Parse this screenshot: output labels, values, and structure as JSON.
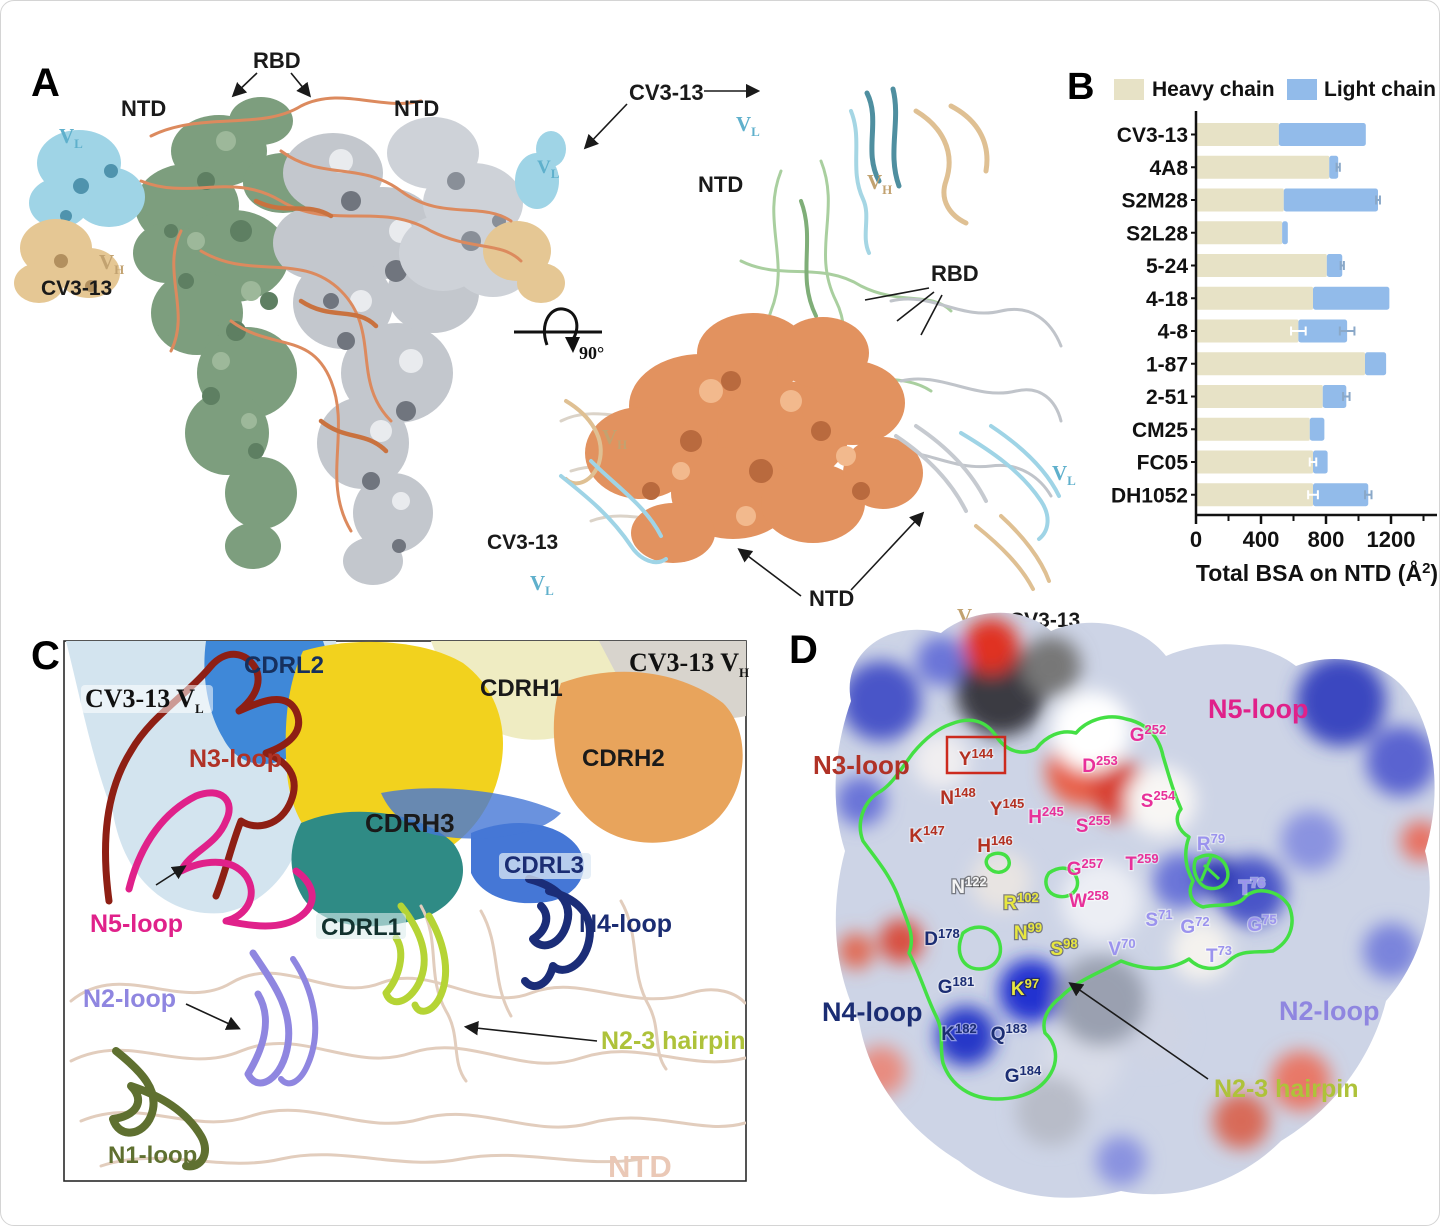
{
  "colors": {
    "heavy_chain": "#e7e2c6",
    "light_chain": "#92bbea",
    "light_err": "#8aa8c8",
    "heavy_err": "#ffffff",
    "n1_loop": "#5f7030",
    "n2_loop": "#8f86e0",
    "n3_loop": "#b03226",
    "n4_loop": "#1b2d73",
    "n5_loop": "#e0218a",
    "n23_hairpin": "#aec23a",
    "vl_cyan": "#5fb0cc",
    "vh_tan": "#c2a270",
    "ntd_pink": "#eac8b6",
    "epitope_outline": "#44e044",
    "box_red": "#cc2a1e",
    "residue_n3": "#b43121",
    "residue_n5": "#e8309a",
    "residue_n2": "#9b93ee",
    "residue_n4": "#1b2d73",
    "residue_yellow": "#e8e73f",
    "residue_white": "#f5f5f5"
  },
  "panel_a": {
    "label": "A",
    "rbd": "RBD",
    "ntd": "NTD",
    "cv3_13": "CV3-13",
    "v": "V",
    "sub_l": "L",
    "sub_h": "H",
    "rotation_angle": "90°"
  },
  "panel_b": {
    "label": "B",
    "legend_heavy": "Heavy chain",
    "legend_light": "Light chain"
  },
  "chart_data": {
    "type": "bar",
    "orientation": "horizontal",
    "stacked": true,
    "title": "",
    "xlabel": "Total BSA on NTD (Å²)",
    "ylabel": "",
    "xlim": [
      0,
      1400
    ],
    "xticks": [
      0,
      400,
      800,
      1200
    ],
    "xticks_minor": [
      200,
      600,
      1000,
      1400
    ],
    "grid": false,
    "legend_position": "top",
    "categories": [
      "CV3-13",
      "4A8",
      "S2M28",
      "S2L28",
      "5-24",
      "4-18",
      "4-8",
      "1-87",
      "2-51",
      "CM25",
      "FC05",
      "DH1052"
    ],
    "series": [
      {
        "name": "Heavy chain",
        "color_key": "heavy_chain",
        "values": [
          510,
          820,
          540,
          530,
          805,
          720,
          630,
          1040,
          780,
          700,
          720,
          720
        ],
        "errors": [
          null,
          null,
          null,
          null,
          null,
          null,
          45,
          null,
          null,
          null,
          20,
          30
        ]
      },
      {
        "name": "Light chain",
        "color_key": "light_chain",
        "values": [
          535,
          55,
          580,
          35,
          95,
          470,
          300,
          130,
          145,
          90,
          90,
          340
        ],
        "errors": [
          null,
          10,
          12,
          null,
          10,
          null,
          45,
          null,
          20,
          null,
          null,
          20
        ]
      }
    ]
  },
  "panel_c": {
    "label": "C",
    "cv3_13_v": "CV3-13 V",
    "sub_l": "L",
    "sub_h": "H",
    "cdrl1": "CDRL1",
    "cdrl2": "CDRL2",
    "cdrl3": "CDRL3",
    "cdrh1": "CDRH1",
    "cdrh2": "CDRH2",
    "cdrh3": "CDRH3",
    "n1_loop": "N1-loop",
    "n2_loop": "N2-loop",
    "n3_loop": "N3-loop",
    "n4_loop": "N4-loop",
    "n5_loop": "N5-loop",
    "n23_hairpin": "N2-3 hairpin",
    "ntd": "NTD"
  },
  "panel_d": {
    "label": "D",
    "n3_loop": "N3-loop",
    "n5_loop": "N5-loop",
    "n4_loop": "N4-loop",
    "n2_loop": "N2-loop",
    "n23_hairpin": "N2-3 hairpin",
    "residues": [
      {
        "res": "Y",
        "num": "144",
        "color": "#b43121"
      },
      {
        "res": "G",
        "num": "252",
        "color": "#e8309a"
      },
      {
        "res": "D",
        "num": "253",
        "color": "#e8309a"
      },
      {
        "res": "N",
        "num": "148",
        "color": "#b43121"
      },
      {
        "res": "Y",
        "num": "145",
        "color": "#b43121"
      },
      {
        "res": "H",
        "num": "245",
        "color": "#e8309a"
      },
      {
        "res": "S",
        "num": "254",
        "color": "#e8309a"
      },
      {
        "res": "S",
        "num": "255",
        "color": "#e8309a"
      },
      {
        "res": "K",
        "num": "147",
        "color": "#b43121"
      },
      {
        "res": "H",
        "num": "146",
        "color": "#b43121"
      },
      {
        "res": "G",
        "num": "257",
        "color": "#e8309a"
      },
      {
        "res": "T",
        "num": "259",
        "color": "#e8309a"
      },
      {
        "res": "R",
        "num": "79",
        "color": "#9b93ee"
      },
      {
        "res": "N",
        "num": "122",
        "color": "#f5f5f5"
      },
      {
        "res": "R",
        "num": "102",
        "color": "#e8e73f"
      },
      {
        "res": "W",
        "num": "258",
        "color": "#e8309a"
      },
      {
        "res": "T",
        "num": "76",
        "color": "#9b93ee"
      },
      {
        "res": "S",
        "num": "71",
        "color": "#9b93ee"
      },
      {
        "res": "G",
        "num": "72",
        "color": "#9b93ee"
      },
      {
        "res": "G",
        "num": "75",
        "color": "#9b93ee"
      },
      {
        "res": "D",
        "num": "178",
        "color": "#1b2d73"
      },
      {
        "res": "N",
        "num": "99",
        "color": "#e8e73f"
      },
      {
        "res": "S",
        "num": "98",
        "color": "#e8e73f"
      },
      {
        "res": "V",
        "num": "70",
        "color": "#9b93ee"
      },
      {
        "res": "T",
        "num": "73",
        "color": "#9b93ee"
      },
      {
        "res": "G",
        "num": "181",
        "color": "#1b2d73"
      },
      {
        "res": "K",
        "num": "97",
        "color": "#e8e73f"
      },
      {
        "res": "K",
        "num": "182",
        "color": "#1b2d73"
      },
      {
        "res": "Q",
        "num": "183",
        "color": "#1b2d73"
      },
      {
        "res": "G",
        "num": "184",
        "color": "#1b2d73"
      }
    ]
  }
}
